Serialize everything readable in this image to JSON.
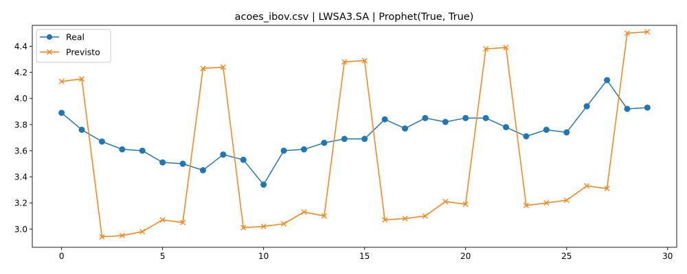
{
  "chart_data": {
    "type": "line",
    "title": "acoes_ibov.csv | LWSA3.SA | Prophet(True, True)",
    "xlabel": "",
    "ylabel": "",
    "xlim": [
      -1.45,
      30.45
    ],
    "ylim": [
      2.86,
      4.56
    ],
    "xticks": [
      0,
      5,
      10,
      15,
      20,
      25,
      30
    ],
    "yticks": [
      3.0,
      3.2,
      3.4,
      3.6,
      3.8,
      4.0,
      4.2,
      4.4
    ],
    "grid": false,
    "legend_position": "top-left",
    "x": [
      0,
      1,
      2,
      3,
      4,
      5,
      6,
      7,
      8,
      9,
      10,
      11,
      12,
      13,
      14,
      15,
      16,
      17,
      18,
      19,
      20,
      21,
      22,
      23,
      24,
      25,
      26,
      27,
      28,
      29
    ],
    "series": [
      {
        "name": "Real",
        "color": "#1f77b4",
        "marker": "circle",
        "values": [
          3.89,
          3.76,
          3.67,
          3.61,
          3.6,
          3.51,
          3.5,
          3.45,
          3.57,
          3.53,
          3.34,
          3.6,
          3.61,
          3.66,
          3.69,
          3.69,
          3.84,
          3.77,
          3.85,
          3.82,
          3.85,
          3.85,
          3.78,
          3.71,
          3.76,
          3.74,
          3.94,
          4.14,
          3.92,
          3.93
        ]
      },
      {
        "name": "Previsto",
        "color": "#ff7f0e",
        "marker": "x",
        "values": [
          4.13,
          4.15,
          2.94,
          2.95,
          2.98,
          3.07,
          3.05,
          4.23,
          4.24,
          3.01,
          3.02,
          3.04,
          3.13,
          3.1,
          4.28,
          4.29,
          3.07,
          3.08,
          3.1,
          3.21,
          3.19,
          4.38,
          4.39,
          3.18,
          3.2,
          3.22,
          3.33,
          3.31,
          4.5,
          4.51
        ]
      }
    ]
  }
}
